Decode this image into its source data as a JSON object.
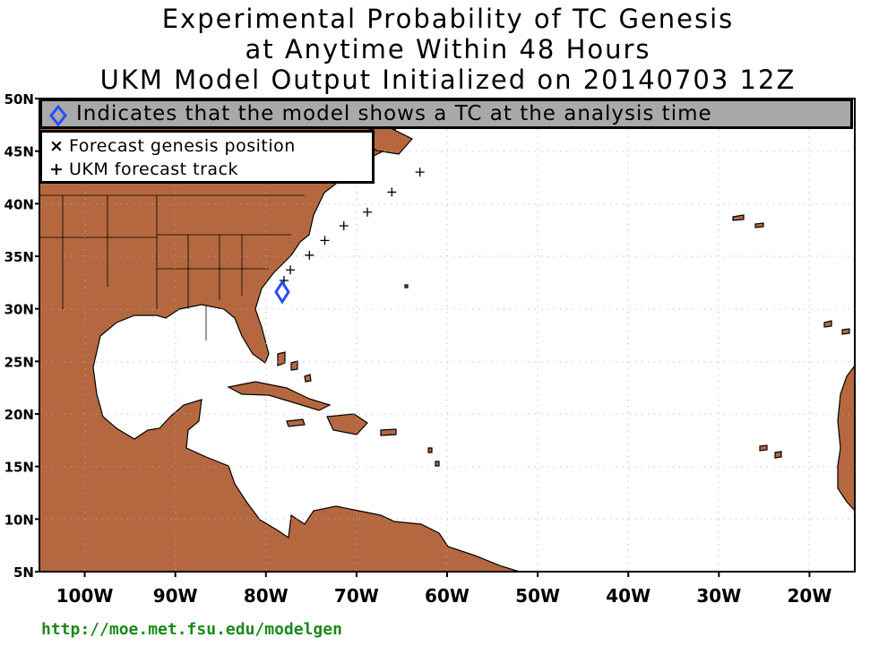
{
  "title": {
    "line1": "Experimental Probability of TC Genesis",
    "line2": "at Anytime Within 48 Hours",
    "line3": "UKM Model Output Initialized on 20140703 12Z"
  },
  "legend": {
    "analysis_note": "Indicates that the model shows a TC at the analysis time",
    "genesis_symbol": "×",
    "genesis_label": "Forecast genesis position",
    "track_symbol": "+",
    "track_label": "UKM forecast track"
  },
  "map": {
    "lon_range": [
      -105,
      -15
    ],
    "lat_range": [
      5,
      50
    ],
    "grid": "dotted",
    "land_color": "#b5683f",
    "ocean_color": "#ffffff",
    "analysis_marker_color": "#2a4bff",
    "y_ticks": [
      "50N",
      "45N",
      "40N",
      "35N",
      "30N",
      "25N",
      "20N",
      "15N",
      "10N",
      "5N"
    ],
    "x_ticks": [
      "100W",
      "90W",
      "80W",
      "70W",
      "60W",
      "50W",
      "40W",
      "30W",
      "20W"
    ],
    "analysis_position": {
      "lon": -78.2,
      "lat": 31.6
    },
    "track_points": [
      {
        "lon": -78.0,
        "lat": 32.7
      },
      {
        "lon": -77.3,
        "lat": 33.7
      },
      {
        "lon": -75.2,
        "lat": 35.1
      },
      {
        "lon": -73.5,
        "lat": 36.5
      },
      {
        "lon": -71.4,
        "lat": 37.9
      },
      {
        "lon": -68.8,
        "lat": 39.2
      },
      {
        "lon": -66.1,
        "lat": 41.1
      },
      {
        "lon": -63.0,
        "lat": 43.0
      }
    ]
  },
  "footer": {
    "url": "http://moe.met.fsu.edu/modelgen"
  }
}
